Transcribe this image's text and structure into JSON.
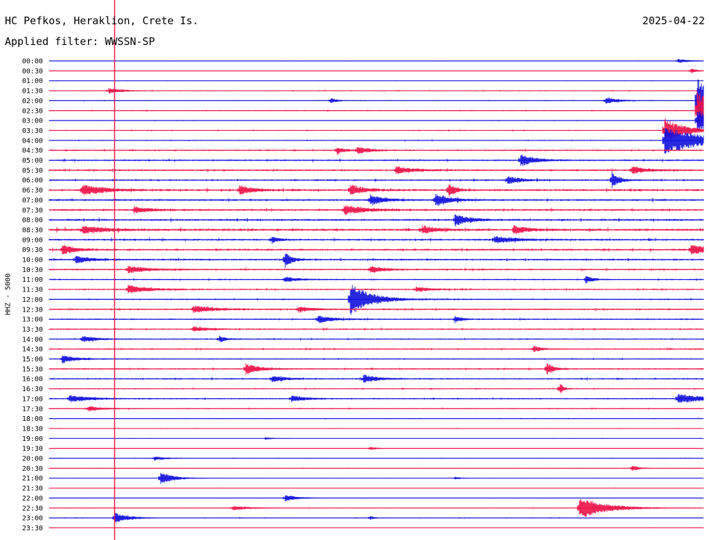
{
  "header": {
    "station": "HC Pefkos, Heraklion, Crete Is.",
    "filter": "Applied filter: WWSSN-SP",
    "date": "2025-04-22"
  },
  "chart_data": {
    "type": "line",
    "ylabel": "HHZ - 5000",
    "row_interval_minutes": 30,
    "traces_per_hour": 2,
    "row_labels": [
      "00:00",
      "00:30",
      "01:00",
      "01:30",
      "02:00",
      "02:30",
      "03:00",
      "03:30",
      "04:00",
      "04:30",
      "05:00",
      "05:30",
      "06:00",
      "06:30",
      "07:00",
      "07:30",
      "08:00",
      "08:30",
      "09:00",
      "09:30",
      "10:00",
      "10:30",
      "11:00",
      "11:30",
      "12:00",
      "12:30",
      "13:00",
      "13:30",
      "14:00",
      "14:30",
      "15:00",
      "15:30",
      "16:00",
      "16:30",
      "17:00",
      "17:30",
      "18:00",
      "18:30",
      "19:00",
      "19:30",
      "20:00",
      "20:30",
      "21:00",
      "21:30",
      "22:00",
      "22:30",
      "23:00",
      "23:30"
    ],
    "colors": {
      "even_rows": "#1010dd",
      "odd_rows": "#ee1148",
      "current_time_marker": "#ee1148"
    },
    "current_time_fraction": 0.1,
    "noise_level": [
      0.3,
      0.2,
      0.3,
      0.6,
      0.5,
      0.7,
      0.4,
      0.7,
      0.6,
      1.0,
      1.1,
      1.2,
      1.1,
      1.5,
      1.3,
      1.4,
      1.4,
      1.6,
      1.3,
      1.3,
      1.2,
      1.1,
      0.9,
      1.0,
      0.9,
      1.1,
      1.0,
      1.0,
      0.9,
      0.9,
      0.8,
      1.0,
      1.0,
      0.8,
      0.9,
      0.7,
      0.5,
      0.4,
      0.3,
      0.3,
      0.4,
      0.4,
      0.3,
      0.3,
      0.3,
      0.4,
      0.5,
      0.3
    ],
    "events": [
      {
        "row": 0,
        "t": 0.96,
        "amp": 3,
        "dur": 0.02
      },
      {
        "row": 1,
        "t": 0.98,
        "amp": 4,
        "dur": 0.01
      },
      {
        "row": 3,
        "t": 0.09,
        "amp": 4,
        "dur": 0.02
      },
      {
        "row": 4,
        "t": 0.43,
        "amp": 4,
        "dur": 0.01
      },
      {
        "row": 4,
        "t": 0.85,
        "amp": 5,
        "dur": 0.02
      },
      {
        "row": 4,
        "t": 0.99,
        "amp": 34,
        "dur": 0.05
      },
      {
        "row": 5,
        "t": 0.99,
        "amp": 28,
        "dur": 0.05
      },
      {
        "row": 6,
        "t": 0.99,
        "amp": 16,
        "dur": 0.04
      },
      {
        "row": 7,
        "t": 0.94,
        "amp": 18,
        "dur": 0.03
      },
      {
        "row": 8,
        "t": 0.94,
        "amp": 20,
        "dur": 0.06
      },
      {
        "row": 9,
        "t": 0.44,
        "amp": 6,
        "dur": 0.01
      },
      {
        "row": 9,
        "t": 0.47,
        "amp": 5,
        "dur": 0.02
      },
      {
        "row": 10,
        "t": 0.72,
        "amp": 9,
        "dur": 0.02
      },
      {
        "row": 11,
        "t": 0.53,
        "amp": 5,
        "dur": 0.03
      },
      {
        "row": 11,
        "t": 0.89,
        "amp": 6,
        "dur": 0.02
      },
      {
        "row": 12,
        "t": 0.7,
        "amp": 6,
        "dur": 0.02
      },
      {
        "row": 12,
        "t": 0.86,
        "amp": 12,
        "dur": 0.01
      },
      {
        "row": 13,
        "t": 0.05,
        "amp": 8,
        "dur": 0.03
      },
      {
        "row": 13,
        "t": 0.29,
        "amp": 7,
        "dur": 0.02
      },
      {
        "row": 13,
        "t": 0.46,
        "amp": 8,
        "dur": 0.02
      },
      {
        "row": 13,
        "t": 0.61,
        "amp": 10,
        "dur": 0.01
      },
      {
        "row": 14,
        "t": 0.49,
        "amp": 8,
        "dur": 0.02
      },
      {
        "row": 14,
        "t": 0.59,
        "amp": 10,
        "dur": 0.02
      },
      {
        "row": 15,
        "t": 0.13,
        "amp": 5,
        "dur": 0.02
      },
      {
        "row": 15,
        "t": 0.45,
        "amp": 7,
        "dur": 0.03
      },
      {
        "row": 16,
        "t": 0.62,
        "amp": 9,
        "dur": 0.02
      },
      {
        "row": 17,
        "t": 0.05,
        "amp": 6,
        "dur": 0.03
      },
      {
        "row": 17,
        "t": 0.57,
        "amp": 6,
        "dur": 0.02
      },
      {
        "row": 17,
        "t": 0.71,
        "amp": 6,
        "dur": 0.02
      },
      {
        "row": 18,
        "t": 0.34,
        "amp": 5,
        "dur": 0.01
      },
      {
        "row": 18,
        "t": 0.68,
        "amp": 5,
        "dur": 0.03
      },
      {
        "row": 19,
        "t": 0.02,
        "amp": 7,
        "dur": 0.02
      },
      {
        "row": 19,
        "t": 0.98,
        "amp": 7,
        "dur": 0.03
      },
      {
        "row": 20,
        "t": 0.04,
        "amp": 6,
        "dur": 0.02
      },
      {
        "row": 20,
        "t": 0.36,
        "amp": 12,
        "dur": 0.01
      },
      {
        "row": 21,
        "t": 0.12,
        "amp": 5,
        "dur": 0.03
      },
      {
        "row": 21,
        "t": 0.49,
        "amp": 5,
        "dur": 0.02
      },
      {
        "row": 22,
        "t": 0.36,
        "amp": 4,
        "dur": 0.02
      },
      {
        "row": 22,
        "t": 0.82,
        "amp": 6,
        "dur": 0.01
      },
      {
        "row": 23,
        "t": 0.12,
        "amp": 6,
        "dur": 0.03
      },
      {
        "row": 23,
        "t": 0.56,
        "amp": 4,
        "dur": 0.02
      },
      {
        "row": 24,
        "t": 0.46,
        "amp": 24,
        "dur": 0.03
      },
      {
        "row": 25,
        "t": 0.22,
        "amp": 5,
        "dur": 0.03
      },
      {
        "row": 25,
        "t": 0.38,
        "amp": 4,
        "dur": 0.02
      },
      {
        "row": 26,
        "t": 0.41,
        "amp": 6,
        "dur": 0.02
      },
      {
        "row": 26,
        "t": 0.62,
        "amp": 5,
        "dur": 0.01
      },
      {
        "row": 27,
        "t": 0.22,
        "amp": 4,
        "dur": 0.02
      },
      {
        "row": 28,
        "t": 0.05,
        "amp": 5,
        "dur": 0.02
      },
      {
        "row": 28,
        "t": 0.26,
        "amp": 5,
        "dur": 0.01
      },
      {
        "row": 29,
        "t": 0.74,
        "amp": 5,
        "dur": 0.01
      },
      {
        "row": 30,
        "t": 0.02,
        "amp": 6,
        "dur": 0.02
      },
      {
        "row": 31,
        "t": 0.3,
        "amp": 8,
        "dur": 0.02
      },
      {
        "row": 31,
        "t": 0.76,
        "amp": 10,
        "dur": 0.01
      },
      {
        "row": 32,
        "t": 0.34,
        "amp": 5,
        "dur": 0.02
      },
      {
        "row": 32,
        "t": 0.48,
        "amp": 6,
        "dur": 0.02
      },
      {
        "row": 33,
        "t": 0.78,
        "amp": 10,
        "dur": 0.005
      },
      {
        "row": 34,
        "t": 0.03,
        "amp": 5,
        "dur": 0.03
      },
      {
        "row": 34,
        "t": 0.37,
        "amp": 5,
        "dur": 0.02
      },
      {
        "row": 34,
        "t": 0.96,
        "amp": 7,
        "dur": 0.04
      },
      {
        "row": 35,
        "t": 0.06,
        "amp": 4,
        "dur": 0.02
      },
      {
        "row": 38,
        "t": 0.33,
        "amp": 2,
        "dur": 0.01
      },
      {
        "row": 39,
        "t": 0.49,
        "amp": 3,
        "dur": 0.01
      },
      {
        "row": 40,
        "t": 0.16,
        "amp": 3,
        "dur": 0.02
      },
      {
        "row": 41,
        "t": 0.89,
        "amp": 5,
        "dur": 0.01
      },
      {
        "row": 42,
        "t": 0.17,
        "amp": 9,
        "dur": 0.02
      },
      {
        "row": 42,
        "t": 0.62,
        "amp": 2,
        "dur": 0.01
      },
      {
        "row": 44,
        "t": 0.36,
        "amp": 5,
        "dur": 0.02
      },
      {
        "row": 45,
        "t": 0.81,
        "amp": 16,
        "dur": 0.04
      },
      {
        "row": 45,
        "t": 0.28,
        "amp": 3,
        "dur": 0.03
      },
      {
        "row": 46,
        "t": 0.1,
        "amp": 8,
        "dur": 0.02
      },
      {
        "row": 46,
        "t": 0.49,
        "amp": 4,
        "dur": 0.005
      }
    ]
  }
}
